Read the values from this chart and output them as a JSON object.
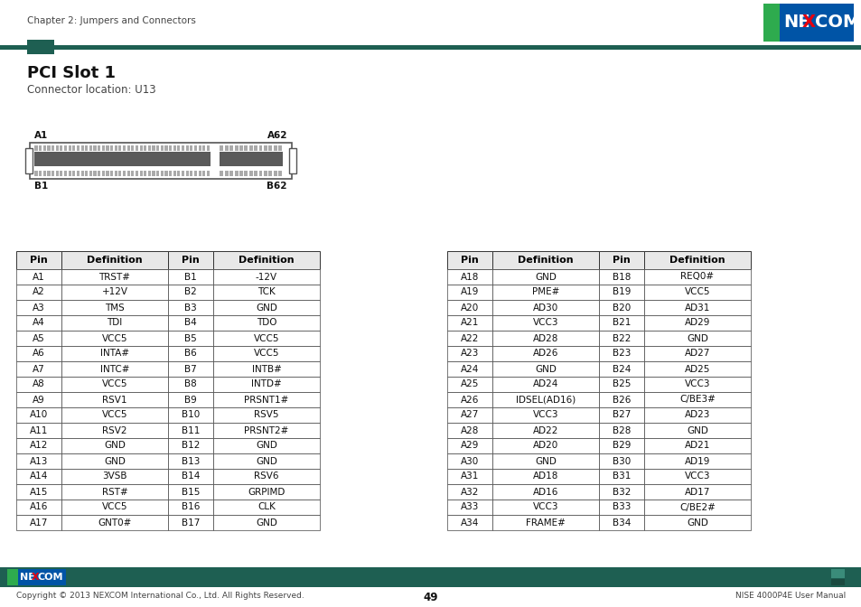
{
  "title": "PCI Slot 1",
  "subtitle": "Connector location: U13",
  "chapter_header": "Chapter 2: Jumpers and Connectors",
  "footer_left": "Copyright © 2013 NEXCOM International Co., Ltd. All Rights Reserved.",
  "footer_center": "49",
  "footer_right": "NISE 4000P4E User Manual",
  "dark_teal": "#1e5f52",
  "table1": {
    "headers": [
      "Pin",
      "Definition",
      "Pin",
      "Definition"
    ],
    "rows": [
      [
        "A1",
        "TRST#",
        "B1",
        "-12V"
      ],
      [
        "A2",
        "+12V",
        "B2",
        "TCK"
      ],
      [
        "A3",
        "TMS",
        "B3",
        "GND"
      ],
      [
        "A4",
        "TDI",
        "B4",
        "TDO"
      ],
      [
        "A5",
        "VCC5",
        "B5",
        "VCC5"
      ],
      [
        "A6",
        "INTA#",
        "B6",
        "VCC5"
      ],
      [
        "A7",
        "INTC#",
        "B7",
        "INTB#"
      ],
      [
        "A8",
        "VCC5",
        "B8",
        "INTD#"
      ],
      [
        "A9",
        "RSV1",
        "B9",
        "PRSNT1#"
      ],
      [
        "A10",
        "VCC5",
        "B10",
        "RSV5"
      ],
      [
        "A11",
        "RSV2",
        "B11",
        "PRSNT2#"
      ],
      [
        "A12",
        "GND",
        "B12",
        "GND"
      ],
      [
        "A13",
        "GND",
        "B13",
        "GND"
      ],
      [
        "A14",
        "3VSB",
        "B14",
        "RSV6"
      ],
      [
        "A15",
        "RST#",
        "B15",
        "GRPIMD"
      ],
      [
        "A16",
        "VCC5",
        "B16",
        "CLK"
      ],
      [
        "A17",
        "GNT0#",
        "B17",
        "GND"
      ]
    ]
  },
  "table2": {
    "headers": [
      "Pin",
      "Definition",
      "Pin",
      "Definition"
    ],
    "rows": [
      [
        "A18",
        "GND",
        "B18",
        "REQ0#"
      ],
      [
        "A19",
        "PME#",
        "B19",
        "VCC5"
      ],
      [
        "A20",
        "AD30",
        "B20",
        "AD31"
      ],
      [
        "A21",
        "VCC3",
        "B21",
        "AD29"
      ],
      [
        "A22",
        "AD28",
        "B22",
        "GND"
      ],
      [
        "A23",
        "AD26",
        "B23",
        "AD27"
      ],
      [
        "A24",
        "GND",
        "B24",
        "AD25"
      ],
      [
        "A25",
        "AD24",
        "B25",
        "VCC3"
      ],
      [
        "A26",
        "IDSEL(AD16)",
        "B26",
        "C/BE3#"
      ],
      [
        "A27",
        "VCC3",
        "B27",
        "AD23"
      ],
      [
        "A28",
        "AD22",
        "B28",
        "GND"
      ],
      [
        "A29",
        "AD20",
        "B29",
        "AD21"
      ],
      [
        "A30",
        "GND",
        "B30",
        "AD19"
      ],
      [
        "A31",
        "AD18",
        "B31",
        "VCC3"
      ],
      [
        "A32",
        "AD16",
        "B32",
        "AD17"
      ],
      [
        "A33",
        "VCC3",
        "B33",
        "C/BE2#"
      ],
      [
        "A34",
        "FRAME#",
        "B34",
        "GND"
      ]
    ]
  }
}
